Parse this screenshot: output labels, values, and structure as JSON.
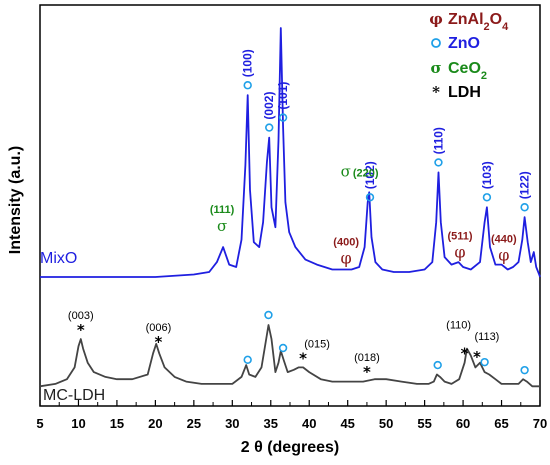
{
  "chart_data": {
    "type": "line",
    "xlabel": "2 θ (degrees)",
    "ylabel": "Intensity (a.u.)",
    "xlim": [
      5,
      70
    ],
    "xticks": [
      5,
      10,
      15,
      20,
      25,
      30,
      35,
      40,
      45,
      50,
      55,
      60,
      65,
      70
    ],
    "grid": false,
    "legend_position": "top-right",
    "legend": [
      {
        "symbol": "φ",
        "label": "ZnAl",
        "sub1": "2",
        "mid": "O",
        "sub2": "4",
        "color": "#8b1a1a"
      },
      {
        "symbol": "o",
        "label": "ZnO",
        "color": "#1f1fe0"
      },
      {
        "symbol": "σ",
        "label": "CeO",
        "sub1": "2",
        "color": "#1a8a1a"
      },
      {
        "symbol": "*",
        "label": "LDH",
        "color": "#000000"
      }
    ],
    "series": [
      {
        "name": "MixO",
        "color": "#1f1fe0",
        "x": [
          5,
          10,
          15,
          20,
          25,
          27,
          28,
          28.8,
          29.6,
          30.5,
          31.2,
          31.7,
          32.0,
          32.3,
          32.8,
          33.5,
          34.0,
          34.5,
          34.8,
          35.1,
          35.6,
          36.0,
          36.3,
          36.6,
          36.9,
          37.4,
          38.2,
          39.5,
          41,
          43,
          44.8,
          45.5,
          46.5,
          47.2,
          47.6,
          47.8,
          48.1,
          48.6,
          49.5,
          51,
          53,
          55,
          56.0,
          56.5,
          56.8,
          57.1,
          57.6,
          58.5,
          59.4,
          60.0,
          61.0,
          62.2,
          62.8,
          63.1,
          63.5,
          64.2,
          65.0,
          65.8,
          66.5,
          67.2,
          67.7,
          68.0,
          68.4,
          68.8,
          69.2,
          69.5,
          69.9,
          70
        ],
        "y": [
          0,
          0,
          0,
          0,
          1,
          2,
          6,
          12,
          5,
          4,
          15,
          45,
          73,
          35,
          14,
          12,
          22,
          46,
          56,
          28,
          20,
          55,
          100,
          60,
          30,
          18,
          12,
          7,
          5,
          3,
          3,
          3,
          4,
          12,
          30,
          34,
          16,
          6,
          3,
          2,
          2,
          3,
          6,
          22,
          42,
          22,
          8,
          5,
          6,
          4,
          3,
          6,
          22,
          28,
          12,
          5,
          5,
          3,
          4,
          6,
          15,
          24,
          14,
          6,
          10,
          4,
          1,
          0
        ]
      },
      {
        "name": "MC-LDH",
        "color": "#444444",
        "x": [
          5,
          7,
          8.5,
          9.5,
          10.0,
          10.3,
          10.6,
          11.2,
          12,
          13.5,
          15,
          17,
          19,
          19.7,
          20.1,
          20.5,
          21.2,
          22.5,
          24,
          26,
          28,
          30,
          31.2,
          31.8,
          32.2,
          33.0,
          33.8,
          34.3,
          34.7,
          35.1,
          35.6,
          36.0,
          36.3,
          36.7,
          37.2,
          38.0,
          38.6,
          39.2,
          40.0,
          41.5,
          43,
          45,
          47,
          48.5,
          50,
          52,
          54,
          55.5,
          56.2,
          56.6,
          57.0,
          57.6,
          58.5,
          59.5,
          60.2,
          60.5,
          61.0,
          61.6,
          62.2,
          62.8,
          63.4,
          64.2,
          65,
          66,
          67.2,
          67.8,
          68.3,
          69,
          70
        ],
        "y": [
          2,
          3,
          5,
          10,
          19,
          22,
          18,
          12,
          8,
          6,
          5,
          5,
          7,
          16,
          20,
          16,
          10,
          6,
          4,
          3,
          3,
          3,
          6,
          11,
          7,
          6,
          10,
          20,
          28,
          22,
          8,
          12,
          17,
          13,
          8,
          9,
          10,
          10,
          8,
          5,
          4,
          4,
          4,
          5,
          5,
          4,
          3,
          3,
          4,
          7,
          6,
          4,
          3,
          5,
          12,
          18,
          15,
          10,
          12,
          8,
          7,
          5,
          3,
          3,
          3,
          5,
          4,
          2,
          2
        ]
      }
    ],
    "series_labels": {
      "mixo": "MixO",
      "ldh": "MC-LDH"
    },
    "annotations": {
      "zno_blue": [
        {
          "x": 32.0,
          "label": "(100)"
        },
        {
          "x": 34.8,
          "label": "(002)"
        },
        {
          "x": 36.6,
          "label": "(101)"
        },
        {
          "x": 47.9,
          "label": "(102)"
        },
        {
          "x": 56.8,
          "label": "(110)"
        },
        {
          "x": 63.1,
          "label": "(103)"
        },
        {
          "x": 68.0,
          "label": "(122)"
        }
      ],
      "ceo2_green": [
        {
          "x": 28.8,
          "label": "(111)"
        },
        {
          "x": 47.6,
          "label": "(220)"
        }
      ],
      "znal_red": [
        {
          "x": 44.8,
          "label": "(400)"
        },
        {
          "x": 59.6,
          "label": "(511)"
        },
        {
          "x": 65.3,
          "label": "(440)"
        }
      ],
      "ldh_black": [
        {
          "x": 10.3,
          "label": "(003)"
        },
        {
          "x": 20.4,
          "label": "(006)"
        },
        {
          "x": 39.2,
          "label": "(015)"
        },
        {
          "x": 47.5,
          "label": "(018)"
        },
        {
          "x": 60.2,
          "label": "(110)"
        },
        {
          "x": 61.8,
          "label": "(113)"
        }
      ],
      "zno_ldh_circles": [
        32.0,
        34.7,
        36.6,
        56.7,
        62.8,
        68.0
      ]
    }
  }
}
